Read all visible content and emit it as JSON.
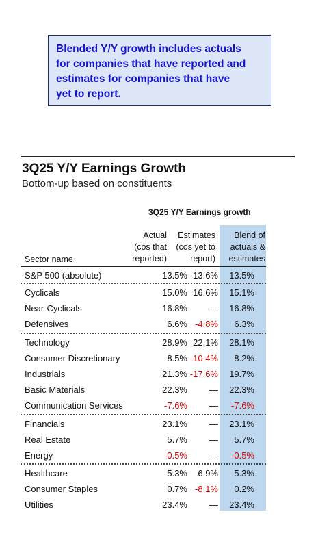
{
  "callout": {
    "lines": [
      "Blended Y/Y growth includes actuals",
      "for companies that have reported and",
      "estimates for companies that have",
      "yet to report."
    ]
  },
  "title": "3Q25 Y/Y Earnings Growth",
  "subtitle": "Bottom-up based on constituents",
  "table": {
    "header": "3Q25 Y/Y Earnings growth",
    "columns": {
      "sector": "Sector name",
      "actual": [
        "Actual",
        "(cos that",
        "reported)"
      ],
      "estimates": [
        "Estimates",
        "(cos yet to",
        "report)"
      ],
      "blend": [
        "Blend of",
        "actuals &",
        "estimates"
      ]
    },
    "rows": [
      {
        "sector": "S&P 500 (absolute)",
        "actual": "13.5%",
        "estimates": "13.6%",
        "blend": "13.5%"
      },
      {
        "sector": "Cyclicals",
        "actual": "15.0%",
        "estimates": "16.6%",
        "blend": "15.1%"
      },
      {
        "sector": "Near-Cyclicals",
        "actual": "16.8%",
        "estimates": "—",
        "blend": "16.8%"
      },
      {
        "sector": "Defensives",
        "actual": "6.6%",
        "estimates": "-4.8%",
        "blend": "6.3%"
      },
      {
        "sector": "Technology",
        "actual": "28.9%",
        "estimates": "22.1%",
        "blend": "28.1%"
      },
      {
        "sector": "Consumer Discretionary",
        "actual": "8.5%",
        "estimates": "-10.4%",
        "blend": "8.2%"
      },
      {
        "sector": "Industrials",
        "actual": "21.3%",
        "estimates": "-17.6%",
        "blend": "19.7%"
      },
      {
        "sector": "Basic Materials",
        "actual": "22.3%",
        "estimates": "—",
        "blend": "22.3%"
      },
      {
        "sector": "Communication Services",
        "actual": "-7.6%",
        "estimates": "—",
        "blend": "-7.6%"
      },
      {
        "sector": "Financials",
        "actual": "23.1%",
        "estimates": "—",
        "blend": "23.1%"
      },
      {
        "sector": "Real Estate",
        "actual": "5.7%",
        "estimates": "—",
        "blend": "5.7%"
      },
      {
        "sector": "Energy",
        "actual": "-0.5%",
        "estimates": "—",
        "blend": "-0.5%"
      },
      {
        "sector": "Healthcare",
        "actual": "5.3%",
        "estimates": "6.9%",
        "blend": "5.3%"
      },
      {
        "sector": "Consumer Staples",
        "actual": "0.7%",
        "estimates": "-8.1%",
        "blend": "0.2%"
      },
      {
        "sector": "Utilities",
        "actual": "23.4%",
        "estimates": "—",
        "blend": "23.4%"
      }
    ]
  },
  "colors": {
    "callout_text": "#1515c8",
    "callout_bg": "#dde6f7",
    "blend_column_bg": "#bdd7ee",
    "negative": "#e00000"
  }
}
